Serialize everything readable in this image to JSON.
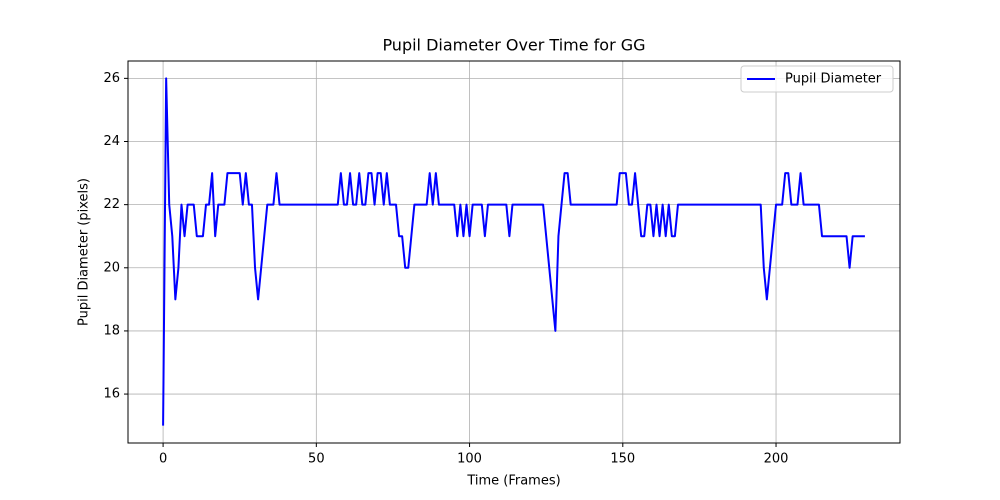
{
  "chart_data": {
    "type": "line",
    "title": "Pupil Diameter Over Time for GG",
    "xlabel": "Time (Frames)",
    "ylabel": "Pupil Diameter (pixels)",
    "x": [
      0,
      1,
      2,
      3,
      4,
      5,
      6,
      7,
      8,
      9,
      10,
      11,
      12,
      13,
      14,
      15,
      16,
      17,
      18,
      19,
      20,
      21,
      22,
      23,
      24,
      25,
      26,
      27,
      28,
      29,
      30,
      31,
      32,
      33,
      34,
      35,
      36,
      37,
      38,
      39,
      40,
      41,
      42,
      43,
      44,
      45,
      46,
      47,
      48,
      49,
      50,
      51,
      52,
      53,
      54,
      55,
      56,
      57,
      58,
      59,
      60,
      61,
      62,
      63,
      64,
      65,
      66,
      67,
      68,
      69,
      70,
      71,
      72,
      73,
      74,
      75,
      76,
      77,
      78,
      79,
      80,
      81,
      82,
      83,
      84,
      85,
      86,
      87,
      88,
      89,
      90,
      91,
      92,
      93,
      94,
      95,
      96,
      97,
      98,
      99,
      100,
      101,
      102,
      103,
      104,
      105,
      106,
      107,
      108,
      109,
      110,
      111,
      112,
      113,
      114,
      115,
      116,
      117,
      118,
      119,
      120,
      121,
      122,
      123,
      124,
      125,
      126,
      127,
      128,
      129,
      130,
      131,
      132,
      133,
      134,
      135,
      136,
      137,
      138,
      139,
      140,
      141,
      142,
      143,
      144,
      145,
      146,
      147,
      148,
      149,
      150,
      151,
      152,
      153,
      154,
      155,
      156,
      157,
      158,
      159,
      160,
      161,
      162,
      163,
      164,
      165,
      166,
      167,
      168,
      169,
      170,
      171,
      172,
      173,
      174,
      175,
      176,
      177,
      178,
      179,
      180,
      181,
      182,
      183,
      184,
      185,
      186,
      187,
      188,
      189,
      190,
      191,
      192,
      193,
      194,
      195,
      196,
      197,
      198,
      199,
      200,
      201,
      202,
      203,
      204,
      205,
      206,
      207,
      208,
      209,
      210,
      211,
      212,
      213,
      214,
      215,
      216,
      217,
      218,
      219,
      220,
      221,
      222,
      223,
      224,
      225,
      226,
      227,
      228,
      229
    ],
    "series": [
      {
        "name": "Pupil Diameter",
        "color": "#0000ff",
        "values": [
          15,
          26,
          22,
          21,
          19,
          20,
          22,
          21,
          22,
          22,
          22,
          21,
          21,
          21,
          22,
          22,
          23,
          21,
          22,
          22,
          22,
          23,
          23,
          23,
          23,
          23,
          22,
          23,
          22,
          22,
          20,
          19,
          20,
          21,
          22,
          22,
          22,
          23,
          22,
          22,
          22,
          22,
          22,
          22,
          22,
          22,
          22,
          22,
          22,
          22,
          22,
          22,
          22,
          22,
          22,
          22,
          22,
          22,
          23,
          22,
          22,
          23,
          22,
          22,
          23,
          22,
          22,
          23,
          23,
          22,
          23,
          23,
          22,
          23,
          22,
          22,
          22,
          21,
          21,
          20,
          20,
          21,
          22,
          22,
          22,
          22,
          22,
          23,
          22,
          23,
          22,
          22,
          22,
          22,
          22,
          22,
          21,
          22,
          21,
          22,
          21,
          22,
          22,
          22,
          22,
          21,
          22,
          22,
          22,
          22,
          22,
          22,
          22,
          21,
          22,
          22,
          22,
          22,
          22,
          22,
          22,
          22,
          22,
          22,
          22,
          21,
          20,
          19,
          18,
          21,
          22,
          23,
          23,
          22,
          22,
          22,
          22,
          22,
          22,
          22,
          22,
          22,
          22,
          22,
          22,
          22,
          22,
          22,
          22,
          23,
          23,
          23,
          22,
          22,
          23,
          22,
          21,
          21,
          22,
          22,
          21,
          22,
          21,
          22,
          21,
          22,
          21,
          21,
          22,
          22,
          22,
          22,
          22,
          22,
          22,
          22,
          22,
          22,
          22,
          22,
          22,
          22,
          22,
          22,
          22,
          22,
          22,
          22,
          22,
          22,
          22,
          22,
          22,
          22,
          22,
          22,
          20,
          19,
          20,
          21,
          22,
          22,
          22,
          23,
          23,
          22,
          22,
          22,
          23,
          22,
          22,
          22,
          22,
          22,
          22,
          21,
          21,
          21,
          21,
          21,
          21,
          21,
          21,
          21,
          20,
          21,
          21,
          21,
          21,
          21
        ]
      }
    ],
    "xlim": [
      -11.45,
      240.45
    ],
    "xticks": [
      0,
      50,
      100,
      150,
      200
    ],
    "ylim": [
      14.45,
      26.55
    ],
    "yticks": [
      16,
      18,
      20,
      22,
      24,
      26
    ],
    "grid": true,
    "legend": "upper right"
  }
}
